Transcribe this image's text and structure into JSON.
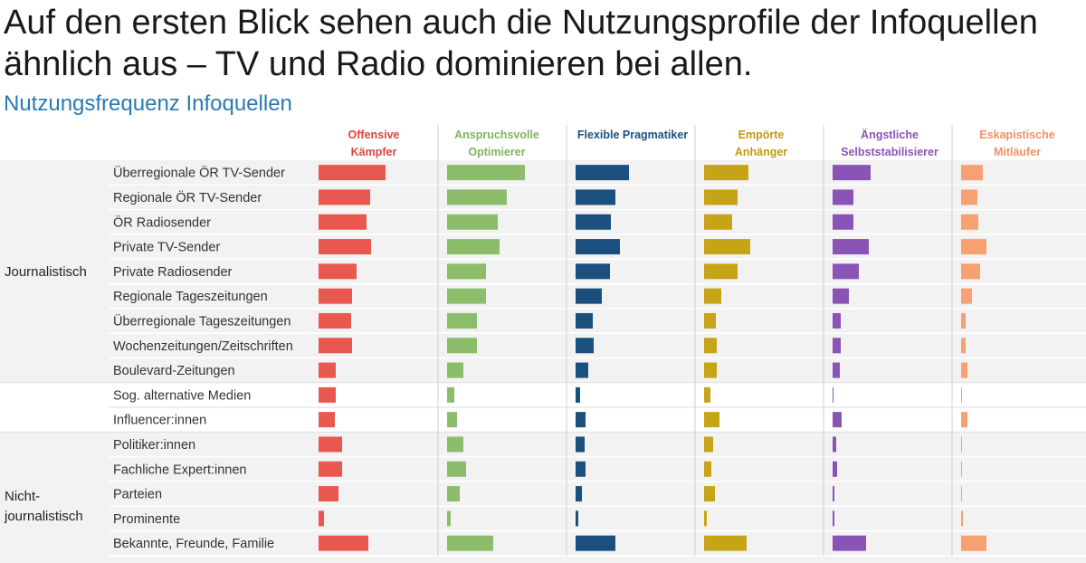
{
  "page": {
    "title": "Auf den ersten Blick sehen auch die Nutzungsprofile der Infoquellen ähnlich aus – TV und Radio dominieren bei allen.",
    "subtitle": "Nutzungsfrequenz Infoquellen"
  },
  "chart_data": {
    "type": "bar",
    "title": "Nutzungsfrequenz Infoquellen",
    "orientation": "horizontal",
    "value_unit": "relative usage frequency (estimated, 0-100 scale)",
    "groups": [
      {
        "label": "Journalistisch",
        "first": 0,
        "last": 8,
        "shaded": true
      },
      {
        "label": "",
        "first": 9,
        "last": 10,
        "shaded": false
      },
      {
        "label": "Nicht-\njournalistisch",
        "first": 11,
        "last": 16,
        "shaded": true
      }
    ],
    "categories": [
      "Überregionale ÖR TV-Sender",
      "Regionale ÖR TV-Sender",
      "ÖR Radiosender",
      "Private TV-Sender",
      "Private Radiosender",
      "Regionale Tageszeitungen",
      "Überregionale Tageszeitungen",
      "Wochenzeitungen/Zeitschriften",
      "Boulevard-Zeitungen",
      "Sog. alternative Medien",
      "Influencer:innen",
      "Politiker:innen",
      "Fachliche Expert:innen",
      "Parteien",
      "Prominente",
      "Bekannte, Freunde, Familie"
    ],
    "series": [
      {
        "name": "Offensive Kämpfer",
        "color": "#e8584f",
        "values": [
          74,
          57,
          53,
          58,
          42,
          37,
          36,
          37,
          19,
          19,
          18,
          26,
          26,
          22,
          6,
          55
        ]
      },
      {
        "name": "Anspruchsvolle Optimierer",
        "color": "#8cbd6b",
        "values": [
          86,
          66,
          56,
          58,
          43,
          43,
          33,
          33,
          18,
          8,
          11,
          18,
          21,
          14,
          4,
          51
        ]
      },
      {
        "name": "Flexible Pragmatiker",
        "color": "#1a4f7e",
        "values": [
          59,
          44,
          39,
          49,
          38,
          29,
          19,
          20,
          14,
          5,
          11,
          10,
          11,
          7,
          3,
          44
        ]
      },
      {
        "name": "Empörte Anhänger",
        "color": "#c6a418",
        "values": [
          49,
          37,
          31,
          51,
          37,
          19,
          13,
          14,
          14,
          7,
          17,
          10,
          8,
          12,
          3,
          47
        ]
      },
      {
        "name": "Ängstliche Selbststabilisierer",
        "color": "#8a54b6",
        "values": [
          42,
          23,
          23,
          40,
          29,
          18,
          9,
          9,
          8,
          1,
          10,
          4,
          5,
          2,
          2,
          37
        ]
      },
      {
        "name": "Eskapistische Mitläufer",
        "color": "#f7a072",
        "values": [
          24,
          18,
          19,
          28,
          21,
          12,
          5,
          5,
          7,
          1,
          7,
          1,
          1,
          1,
          2,
          28
        ]
      }
    ],
    "headers": [
      {
        "line1": "Offensive",
        "line2": "Kämpfer",
        "color": "#d9463e"
      },
      {
        "line1": "Anspruchsvolle",
        "line2": "Optimierer",
        "color": "#7fb35e"
      },
      {
        "line1": "Flexible Pragmatiker",
        "line2": "",
        "color": "#1a4f7e"
      },
      {
        "line1": "Empörte",
        "line2": "Anhänger",
        "color": "#c09a10"
      },
      {
        "line1": "Ängstliche",
        "line2": "Selbststabilisierer",
        "color": "#8a54b6"
      },
      {
        "line1": "Eskapistische",
        "line2": "Mitläufer",
        "color": "#f49060"
      }
    ],
    "xlim": [
      0,
      100
    ],
    "grid": false,
    "legend": "column headers (top)"
  }
}
